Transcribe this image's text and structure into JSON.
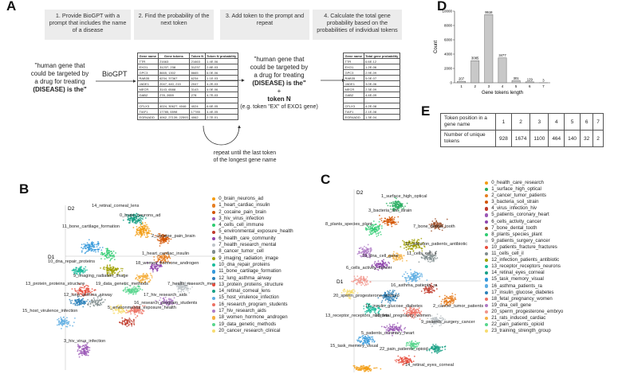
{
  "panel_labels": {
    "a": "A",
    "b": "B",
    "c": "C",
    "d": "D",
    "e": "E"
  },
  "panel_a": {
    "steps": [
      "1. Provide BioGPT with a prompt that includes the name of a disease",
      "2. Find the probability of the next token",
      "3. Add token to the prompt and repeat",
      "4. Calculate the total gene probability based on the probabilities of individual tokens"
    ],
    "prompt_left": [
      "\"human gene that",
      "could be targeted by",
      "a drug for treating",
      "(DISEASE) is the\""
    ],
    "biogpt": "BioGPT",
    "prompt_mid": [
      "\"human gene that",
      "could be targeted by",
      "a drug for treating",
      "(DISEASE) is the\""
    ],
    "plus": "+",
    "token_n": "token N",
    "token_eg": "(e.g. token \"EX\" of EXO1 gene)",
    "dots": "....",
    "repeat_text": [
      "repeat until the last token",
      "of the longest gene name"
    ],
    "table1": {
      "headers": [
        "Gene name",
        "Gene tokens",
        "Token N",
        "Token N probability"
      ],
      "rows": [
        [
          "TTR",
          "21663",
          "21663",
          "1.4E-06"
        ],
        [
          "EXO1",
          "31237, 238",
          "31237",
          "2.8E-03"
        ],
        [
          "GPC3",
          "8665, 1302",
          "8665",
          "6.0E-06"
        ],
        [
          "RAB35",
          "6234, 37367",
          "6234",
          "1.1E-03"
        ],
        [
          "JADE1",
          "2047, 440, 215",
          "2047",
          "4.2E-03"
        ],
        [
          "MECR",
          "3143, 6588",
          "3143",
          "4.0E-06"
        ],
        [
          "GAB2",
          "278, 2659",
          "278",
          "4.7E-03"
        ],
        [
          "...",
          "...",
          "...",
          "..."
        ],
        [
          "CFLX3",
          "4024, 30627, 4046",
          "4024",
          "6.6E-05"
        ],
        [
          "TIAF1",
          "17785, 6598",
          "17785",
          "4.4E-05"
        ],
        [
          "EGR4ADD",
          "4062, 27139, 22593",
          "4062",
          "2.7E-01"
        ]
      ]
    },
    "table2": {
      "headers": [
        "Gene name",
        "Total gene probability"
      ],
      "rows": [
        [
          "TTR",
          "6.6E-12"
        ],
        [
          "EXO1",
          "1.2E-06"
        ],
        [
          "GPC3",
          "2.9E-09"
        ],
        [
          "RAB35",
          "5.0E-07"
        ],
        [
          "JADE1",
          "3.0E-06"
        ],
        [
          "MECR",
          "2.3E-09"
        ],
        [
          "GAB2",
          "4.4E-09"
        ],
        [
          "...",
          "..."
        ],
        [
          "CFLX3",
          "4.2E-08"
        ],
        [
          "TIAF1",
          "2.1E-08"
        ],
        [
          "EGR4ADD",
          "1.3E-04"
        ]
      ]
    }
  },
  "chart_data": {
    "type": "bar",
    "categories": [
      "1",
      "2",
      "3",
      "4",
      "5",
      "6",
      "7"
    ],
    "values": [
      207,
      3085,
      9518,
      3477,
      301,
      129,
      3
    ],
    "data_labels": [
      "207",
      "3085",
      "9518",
      "3477",
      "301",
      "129",
      "3"
    ],
    "xlabel": "Gene tokens length",
    "ylabel": "Count",
    "ylim": [
      0,
      10000
    ],
    "yticks": [
      "0",
      "2000",
      "4000",
      "6000",
      "8000",
      "10000"
    ],
    "grid": false,
    "bar_color": "#c8c8c8"
  },
  "panel_e": {
    "row1_label": "Token position in a gene name",
    "row1": [
      "1",
      "2",
      "3",
      "4",
      "5",
      "6",
      "7"
    ],
    "row2_label": "Number of unique tokens",
    "row2": [
      "928",
      "1674",
      "1100",
      "464",
      "140",
      "32",
      "2"
    ]
  },
  "panel_b": {
    "axis_y": "D2",
    "axis_x": "D1",
    "legend": [
      {
        "label": "0_brain_neurons_ad",
        "color": "#f39c12"
      },
      {
        "label": "1_heart_cardiac_insulin",
        "color": "#e67e22"
      },
      {
        "label": "2_cocaine_pain_brain",
        "color": "#d35400"
      },
      {
        "label": "3_hiv_virus_infection",
        "color": "#9b59b6"
      },
      {
        "label": "4_cells_cell_immune",
        "color": "#2ecc71"
      },
      {
        "label": "5_environmental_exposure_health",
        "color": "#c0392b"
      },
      {
        "label": "6_health_care_community",
        "color": "#8e44ad"
      },
      {
        "label": "7_health_research_mental",
        "color": "#bdc3c7"
      },
      {
        "label": "8_cancer_tumor_cell",
        "color": "#7f8c8d"
      },
      {
        "label": "9_imaging_radiation_image",
        "color": "#a0a000"
      },
      {
        "label": "10_dna_repair_proteins",
        "color": "#1abc9c"
      },
      {
        "label": "11_bone_cartilage_formation",
        "color": "#3498db"
      },
      {
        "label": "12_lung_asthma_airway",
        "color": "#2980b9"
      },
      {
        "label": "13_protein_proteins_structure",
        "color": "#e74c3c"
      },
      {
        "label": "14_retinal_corneal_lens",
        "color": "#16a085"
      },
      {
        "label": "15_host_virulence_infection",
        "color": "#5dade2"
      },
      {
        "label": "16_research_program_students",
        "color": "#ec7063"
      },
      {
        "label": "17_hiv_research_aids",
        "color": "#af7ac5"
      },
      {
        "label": "18_women_hormone_androgen",
        "color": "#f5b041"
      },
      {
        "label": "19_data_genetic_methods",
        "color": "#58d68d"
      },
      {
        "label": "20_cancer_research_clinical",
        "color": "#f7dc6f"
      }
    ],
    "cluster_labels": [
      "14_retinal_corneal_lens",
      "0_brain_neurons_ad",
      "11_bone_cartilage_formation",
      "2_cocaine_pain_brain",
      "1_heart_cardiac_insulin",
      "18_women_hormone_androgen",
      "10_dna_repair_proteins",
      "9_imaging_radiation_image",
      "13_protein_proteins_structure",
      "7_health_research_mental",
      "19_data_genetic_methods",
      "12_lung_asthma_airway",
      "17_hiv_research_aids",
      "16_research_program_students",
      "5_environmental_exposure_health",
      "15_host_virulence_infection",
      "3_hiv_virus_infection"
    ]
  },
  "panel_c": {
    "axis_y": "D2",
    "axis_x": "D1",
    "legend": [
      {
        "label": "0_health_care_research",
        "color": "#f39c12"
      },
      {
        "label": "1_surface_high_optical",
        "color": "#27ae60"
      },
      {
        "label": "2_cancer_tumor_patients",
        "color": "#e67e22"
      },
      {
        "label": "3_bacteria_soil_strain",
        "color": "#d35400"
      },
      {
        "label": "4_virus_infection_hiv",
        "color": "#c0392b"
      },
      {
        "label": "5_patients_coronary_heart",
        "color": "#9b59b6"
      },
      {
        "label": "6_cells_activity_cancer",
        "color": "#8e44ad"
      },
      {
        "label": "7_bone_dental_tooth",
        "color": "#a0522d"
      },
      {
        "label": "8_plants_species_plant",
        "color": "#2ecc71"
      },
      {
        "label": "9_patients_surgery_cancer",
        "color": "#bdc3c7"
      },
      {
        "label": "10_patients_fracture_fractures",
        "color": "#e74c3c"
      },
      {
        "label": "11_cells_cell_il",
        "color": "#7f8c8d"
      },
      {
        "label": "12_infection_patients_antibiotic",
        "color": "#a0a000"
      },
      {
        "label": "13_receptor_receptors_neurons",
        "color": "#1abc9c"
      },
      {
        "label": "14_retinal_eyes_corneal",
        "color": "#16a085"
      },
      {
        "label": "15_task_memory_visual",
        "color": "#3498db"
      },
      {
        "label": "16_asthma_patients_ra",
        "color": "#5dade2"
      },
      {
        "label": "17_insulin_glucose_diabetes",
        "color": "#2980b9"
      },
      {
        "label": "18_fetal_pregnancy_women",
        "color": "#ec7063"
      },
      {
        "label": "19_dna_cell_gene",
        "color": "#af7ac5"
      },
      {
        "label": "20_sperm_progesterone_embryo",
        "color": "#f1948a"
      },
      {
        "label": "21_rats_induced_cardiac",
        "color": "#f5b041"
      },
      {
        "label": "22_pain_patients_opioid",
        "color": "#58d68d"
      },
      {
        "label": "23_training_strength_group",
        "color": "#f7dc6f"
      }
    ],
    "cluster_labels": [
      "1_surface_high_optical",
      "3_bacteria_soil_strain",
      "8_plants_species_plant",
      "7_bone_dental_tooth",
      "12_infection_patients_antibiotic",
      "11_cells_cell_il",
      "19_dna_cell_gene",
      "6_cells_activity_cancer",
      "20_sperm_progesterone_embryo",
      "16_asthma_patients_ra",
      "17_insulin_glucose_diabetes",
      "2_cancer_tumor_patients",
      "13_receptor_receptors_neurons",
      "18_fetal_pregnancy_women",
      "9_patients_surgery_cancer",
      "5_patients_coronary_heart",
      "15_task_memory_visual",
      "22_pain_patients_opioid",
      "14_retinal_eyes_corneal",
      "10_patients_fracture_fractures",
      "0_health_care_research"
    ]
  }
}
